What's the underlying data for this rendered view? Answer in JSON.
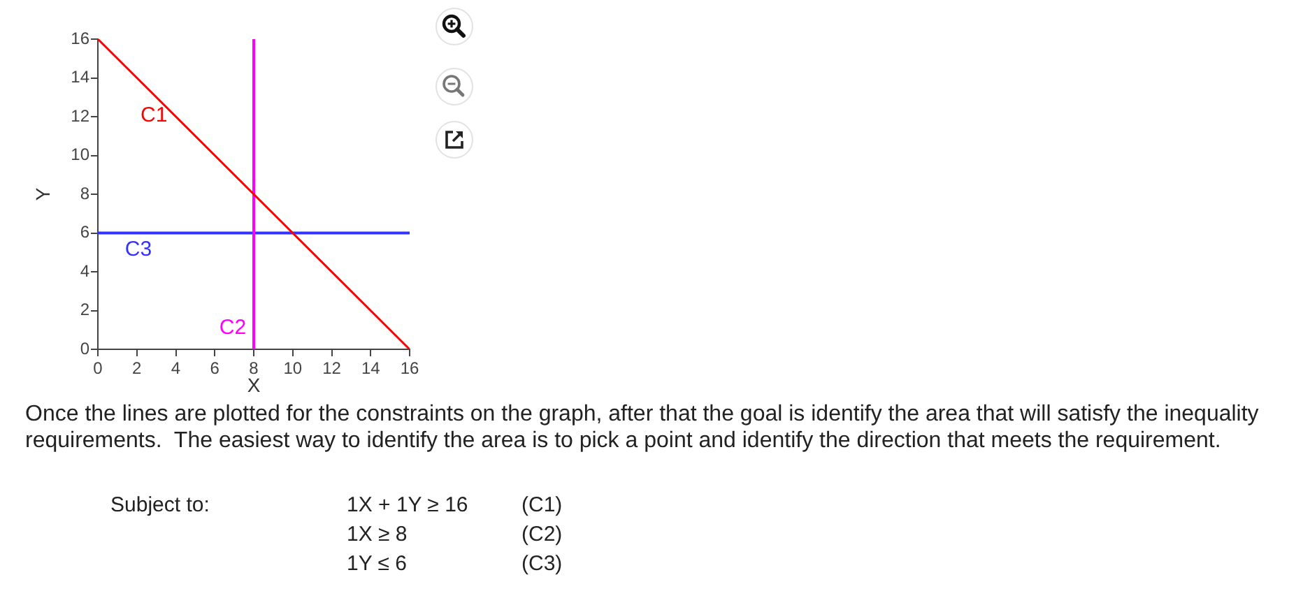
{
  "chart_data": {
    "type": "line",
    "xlabel": "X",
    "ylabel": "Y",
    "xlim": [
      0,
      16
    ],
    "ylim": [
      0,
      16
    ],
    "xticks": [
      0,
      2,
      4,
      6,
      8,
      10,
      12,
      14,
      16
    ],
    "yticks": [
      0,
      2,
      4,
      6,
      8,
      10,
      12,
      14,
      16
    ],
    "grid": false,
    "legend": false,
    "marker": "none",
    "series": [
      {
        "name": "C1",
        "color": "#ff0000",
        "x": [
          0,
          16
        ],
        "values": [
          16,
          0
        ]
      },
      {
        "name": "C2",
        "color": "#ff00ff",
        "x": [
          8,
          8
        ],
        "values": [
          0,
          16
        ]
      },
      {
        "name": "C3",
        "color": "#3333ff",
        "x": [
          0,
          16
        ],
        "values": [
          6,
          6
        ]
      }
    ],
    "annotations": [
      "Once the lines are plotted for the constraints on the graph, after that the goal is identify the area that will satisfy the inequality requirements.  The easiest way to identify the area is to pick a point and identify the direction that meets the requirement.",
      "Subject to:",
      "1X + 1Y ≥ 16",
      "(C1)",
      "1X ≥ 8",
      "(C2)",
      "1Y ≤ 6",
      "(C3)"
    ]
  }
}
